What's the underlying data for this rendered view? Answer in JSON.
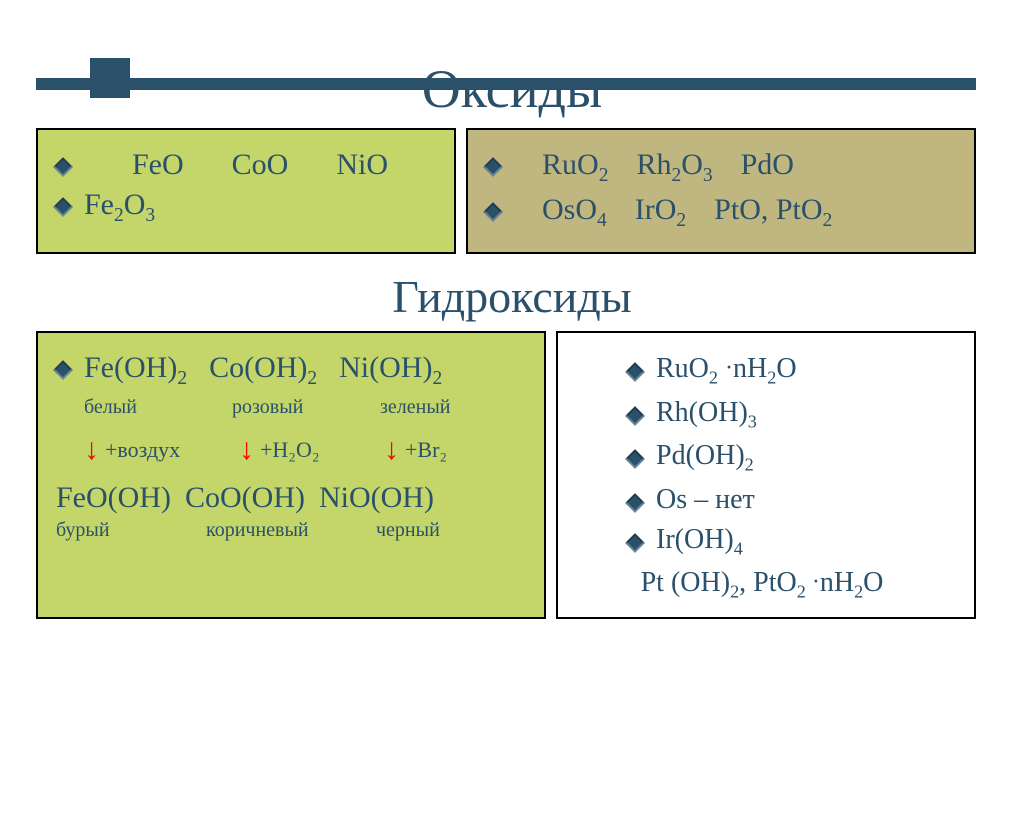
{
  "titles": {
    "oxides": "Оксиды",
    "hydroxides": "Гидроксиды"
  },
  "oxides": {
    "left": {
      "row1": [
        "FeO",
        "CoO",
        "NiO"
      ],
      "row2": [
        "Fe₂O₃"
      ]
    },
    "right": {
      "row1": [
        "RuO₂",
        "Rh₂O₃",
        "PdO"
      ],
      "row2": [
        "OsO₄",
        "IrO₂",
        "PtO, PtO₂"
      ]
    }
  },
  "hydroxides": {
    "left": {
      "compounds": [
        "Fe(OH)₂",
        "Co(OH)₂",
        "Ni(OH)₂"
      ],
      "color_labels": [
        "белый",
        "розовый",
        "зеленый"
      ],
      "reagents": [
        "+воздух",
        "+H₂O₂",
        "+Br₂"
      ],
      "products": [
        "FeO(OH)",
        "CoO(OH)",
        "NiO(OH)"
      ],
      "product_colors": [
        "бурый",
        "коричневый",
        "черный"
      ]
    },
    "right": {
      "items": [
        "RuO₂ ·nH₂O",
        "Rh(OH)₃",
        "Pd(OH)₂",
        "Os – нет",
        "Ir(OH)₄"
      ],
      "footer": "Pt (OH)₂, PtO₂·nH₂O"
    }
  },
  "colors": {
    "text": "#2a506a",
    "arrow": "#ff0000",
    "cell_green": "#c4d66a",
    "cell_tan": "#c0b780",
    "border": "#000000",
    "background": "#ffffff"
  },
  "fonts": {
    "title_size": 54,
    "subtitle_size": 46,
    "body_size": 30,
    "label_size": 20
  }
}
